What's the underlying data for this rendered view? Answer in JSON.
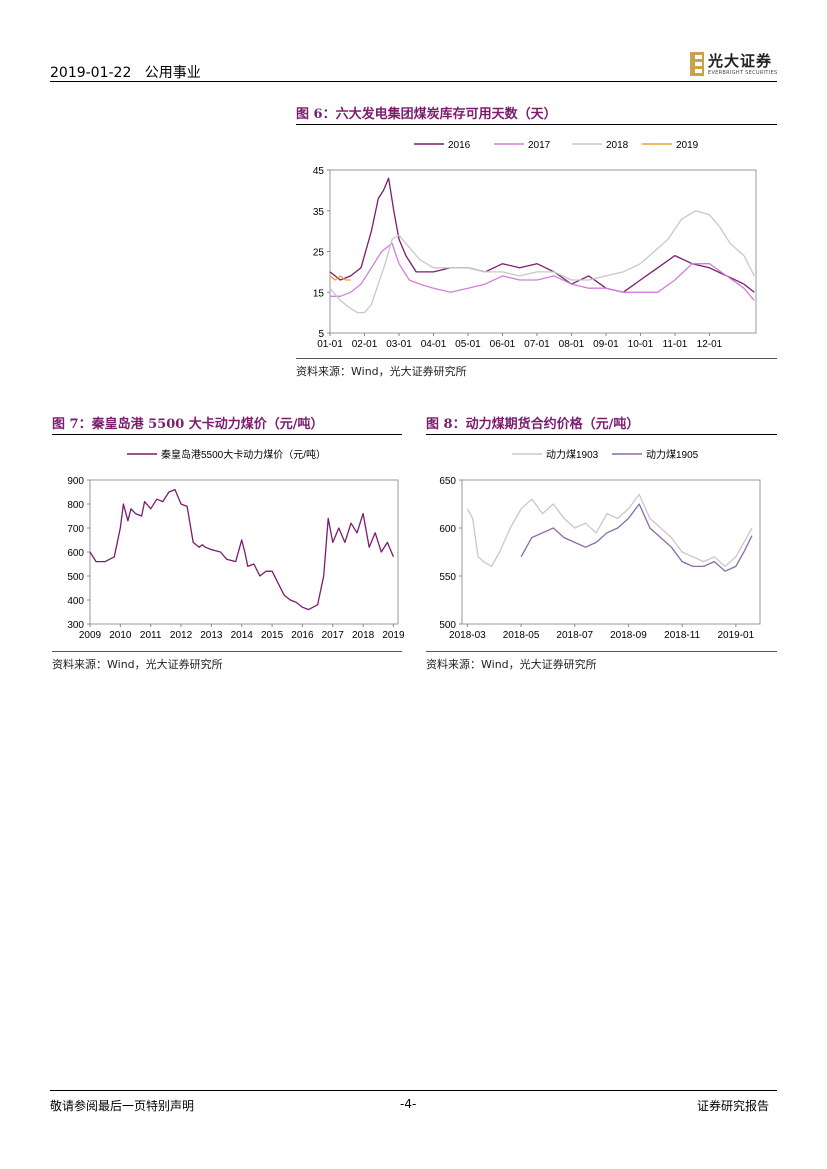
{
  "header": {
    "date": "2019-01-22",
    "sector": "公用事业",
    "logo_text": "光大证券",
    "logo_sub": "EVERBRIGHT SECURITIES"
  },
  "fig6": {
    "title": "图 6：六大发电集团煤炭库存可用天数（天）",
    "source": "资料来源：Wind，光大证券研究所"
  },
  "fig7": {
    "title": "图 7：秦皇岛港 5500 大卡动力煤价（元/吨）",
    "source": "资料来源：Wind，光大证券研究所"
  },
  "fig8": {
    "title": "图 8：动力煤期货合约价格（元/吨）",
    "source": "资料来源：Wind，光大证券研究所"
  },
  "footer": {
    "left": "敬请参阅最后一页特别声明",
    "center": "-4-",
    "right": "证券研究报告"
  },
  "chart_data": [
    {
      "id": "fig6",
      "type": "line",
      "title": "六大发电集团煤炭库存可用天数（天）",
      "categories": [
        "01-01",
        "02-01",
        "03-01",
        "04-01",
        "05-01",
        "06-01",
        "07-01",
        "08-01",
        "09-01",
        "10-01",
        "11-01",
        "12-01"
      ],
      "ylim": [
        5,
        45
      ],
      "yticks": [
        5,
        15,
        25,
        35,
        45
      ],
      "legend": "top",
      "series": [
        {
          "name": "2016",
          "color": "#7b1c6f",
          "x": [
            0,
            0.3,
            0.6,
            0.9,
            1.2,
            1.4,
            1.55,
            1.7,
            1.85,
            2.0,
            2.2,
            2.5,
            3.0,
            3.5,
            4.0,
            4.5,
            5.0,
            5.5,
            6.0,
            6.5,
            7.0,
            7.5,
            8.0,
            8.5,
            9.0,
            9.5,
            10.0,
            10.5,
            11.0,
            11.5,
            12.0,
            12.3
          ],
          "values": [
            20,
            18,
            19,
            21,
            30,
            38,
            40,
            43,
            35,
            28,
            24,
            20,
            20,
            21,
            21,
            20,
            22,
            21,
            22,
            20,
            17,
            19,
            16,
            15,
            18,
            21,
            24,
            22,
            21,
            19,
            17,
            15
          ]
        },
        {
          "name": "2017",
          "color": "#d080d6",
          "x": [
            0,
            0.3,
            0.6,
            0.9,
            1.2,
            1.5,
            1.8,
            2.0,
            2.3,
            2.6,
            3.0,
            3.5,
            4.0,
            4.5,
            5.0,
            5.5,
            6.0,
            6.5,
            7.0,
            7.5,
            8.0,
            8.5,
            9.0,
            9.5,
            10.0,
            10.5,
            11.0,
            11.5,
            12.0,
            12.3
          ],
          "values": [
            14,
            14,
            15,
            17,
            21,
            25,
            27,
            22,
            18,
            17,
            16,
            15,
            16,
            17,
            19,
            18,
            18,
            19,
            17,
            16,
            16,
            15,
            15,
            15,
            18,
            22,
            22,
            19,
            16,
            13
          ]
        },
        {
          "name": "2018",
          "color": "#c8c8c8",
          "x": [
            0,
            0.3,
            0.6,
            0.8,
            1.0,
            1.2,
            1.4,
            1.6,
            1.8,
            2.0,
            2.3,
            2.6,
            3.0,
            3.5,
            4.0,
            4.5,
            5.0,
            5.5,
            6.0,
            6.5,
            7.0,
            7.5,
            8.0,
            8.5,
            9.0,
            9.4,
            9.8,
            10.2,
            10.6,
            11.0,
            11.3,
            11.6,
            12.0,
            12.3
          ],
          "values": [
            16,
            13,
            11,
            10,
            10,
            12,
            17,
            22,
            28,
            29,
            26,
            23,
            21,
            21,
            21,
            20,
            20,
            19,
            20,
            20,
            18,
            18,
            19,
            20,
            22,
            25,
            28,
            33,
            35,
            34,
            31,
            27,
            24,
            19
          ]
        },
        {
          "name": "2019",
          "color": "#f0a030",
          "x": [
            0,
            0.15,
            0.3,
            0.45,
            0.6
          ],
          "values": [
            19,
            18,
            19,
            18,
            18
          ]
        }
      ]
    },
    {
      "id": "fig7",
      "type": "line",
      "title": "秦皇岛港5500大卡动力煤价（元/吨）",
      "categories": [
        "2009",
        "2010",
        "2011",
        "2012",
        "2013",
        "2014",
        "2015",
        "2016",
        "2017",
        "2018",
        "2019"
      ],
      "ylim": [
        300,
        900
      ],
      "yticks": [
        300,
        400,
        500,
        600,
        700,
        800,
        900
      ],
      "legend": "top",
      "series": [
        {
          "name": "秦皇岛港5500大卡动力煤价（元/吨）",
          "color": "#7b1c6f",
          "x": [
            2009.0,
            2009.2,
            2009.5,
            2009.8,
            2010.0,
            2010.1,
            2010.25,
            2010.35,
            2010.5,
            2010.7,
            2010.8,
            2011.0,
            2011.2,
            2011.4,
            2011.6,
            2011.8,
            2012.0,
            2012.2,
            2012.4,
            2012.6,
            2012.7,
            2012.8,
            2013.0,
            2013.3,
            2013.5,
            2013.8,
            2014.0,
            2014.1,
            2014.2,
            2014.4,
            2014.6,
            2014.8,
            2015.0,
            2015.2,
            2015.4,
            2015.6,
            2015.8,
            2016.0,
            2016.2,
            2016.5,
            2016.7,
            2016.85,
            2017.0,
            2017.2,
            2017.4,
            2017.6,
            2017.8,
            2018.0,
            2018.2,
            2018.4,
            2018.6,
            2018.8,
            2019.0
          ],
          "values": [
            600,
            560,
            560,
            580,
            700,
            800,
            730,
            780,
            760,
            750,
            810,
            780,
            820,
            810,
            850,
            860,
            800,
            790,
            640,
            620,
            630,
            620,
            610,
            600,
            570,
            560,
            650,
            600,
            540,
            550,
            500,
            520,
            520,
            470,
            420,
            400,
            390,
            370,
            360,
            380,
            500,
            740,
            640,
            700,
            640,
            720,
            680,
            760,
            620,
            680,
            600,
            640,
            580
          ]
        }
      ]
    },
    {
      "id": "fig8",
      "type": "line",
      "title": "动力煤期货合约价格（元/吨）",
      "categories": [
        "2018-03",
        "2018-05",
        "2018-07",
        "2018-09",
        "2018-11",
        "2019-01"
      ],
      "ylim": [
        500,
        650
      ],
      "yticks": [
        500,
        550,
        600,
        650
      ],
      "legend": "top",
      "series": [
        {
          "name": "动力煤1903",
          "color": "#c8c8c8",
          "x": [
            0,
            0.1,
            0.2,
            0.3,
            0.45,
            0.6,
            0.8,
            1.0,
            1.2,
            1.4,
            1.6,
            1.8,
            2.0,
            2.2,
            2.4,
            2.6,
            2.8,
            3.0,
            3.2,
            3.4,
            3.6,
            3.8,
            4.0,
            4.2,
            4.4,
            4.6,
            4.8,
            5.0,
            5.15,
            5.3
          ],
          "values": [
            620,
            610,
            570,
            565,
            560,
            575,
            600,
            620,
            630,
            615,
            625,
            610,
            600,
            605,
            595,
            615,
            610,
            620,
            635,
            610,
            600,
            590,
            575,
            570,
            565,
            570,
            560,
            570,
            585,
            600
          ]
        },
        {
          "name": "动力煤1905",
          "color": "#8a6aa8",
          "x": [
            1.0,
            1.2,
            1.4,
            1.6,
            1.8,
            2.0,
            2.2,
            2.4,
            2.6,
            2.8,
            3.0,
            3.2,
            3.4,
            3.6,
            3.8,
            4.0,
            4.2,
            4.4,
            4.6,
            4.8,
            5.0,
            5.15,
            5.3
          ],
          "values": [
            570,
            590,
            595,
            600,
            590,
            585,
            580,
            585,
            595,
            600,
            610,
            625,
            600,
            590,
            580,
            565,
            560,
            560,
            565,
            555,
            560,
            575,
            592
          ]
        }
      ]
    }
  ]
}
